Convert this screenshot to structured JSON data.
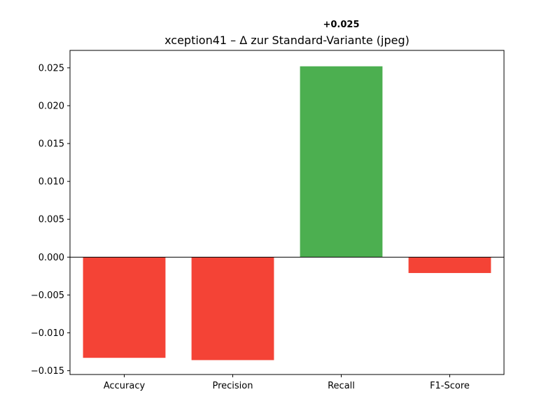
{
  "chart_data": {
    "type": "bar",
    "title": "xception41 – Δ zur Standard-Variante (jpeg)",
    "xlabel": "",
    "ylabel": "",
    "categories": [
      "Accuracy",
      "Precision",
      "Recall",
      "F1-Score"
    ],
    "values": [
      -0.0133,
      -0.0136,
      0.0252,
      -0.0021
    ],
    "bar_colors": [
      "#F44336",
      "#F44336",
      "#4CAF50",
      "#F44336"
    ],
    "ylim": [
      -0.0155,
      0.0273
    ],
    "yticks": [
      -0.015,
      -0.01,
      -0.005,
      0.0,
      0.005,
      0.01,
      0.015,
      0.02,
      0.025
    ],
    "ytick_labels": [
      "−0.015",
      "−0.010",
      "−0.005",
      "0.000",
      "0.005",
      "0.010",
      "0.015",
      "0.020",
      "0.025"
    ],
    "zero_line": true,
    "grid": false,
    "legend": "none",
    "annotations": [
      {
        "text": "+0.025",
        "category": "Recall"
      }
    ]
  }
}
